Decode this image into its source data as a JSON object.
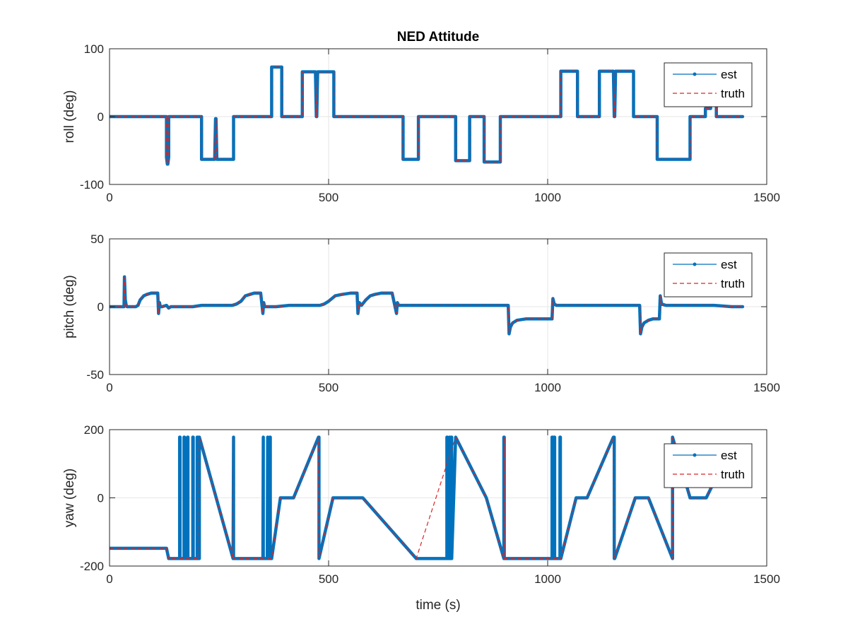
{
  "figure": {
    "title": "NED Attitude"
  },
  "colors": {
    "est": "#0072bd",
    "truth": "#d62728",
    "axis": "#262626",
    "grid": "#e6e6e6"
  },
  "chart_data": [
    {
      "type": "line",
      "title": "NED Attitude",
      "xlabel": "",
      "ylabel": "roll (deg)",
      "xlim": [
        0,
        1500
      ],
      "ylim": [
        -100,
        100
      ],
      "xticks": [
        0,
        500,
        1000,
        1500
      ],
      "yticks": [
        -100,
        0,
        100
      ],
      "grid": true,
      "legend": {
        "placement": "top-right",
        "entries": [
          "est",
          "truth"
        ]
      },
      "series": [
        {
          "name": "est",
          "x": [
            0,
            130,
            130,
            132,
            133,
            133,
            135,
            135,
            210,
            210,
            240,
            240,
            242,
            243,
            243,
            245,
            245,
            283,
            283,
            370,
            370,
            393,
            393,
            440,
            440,
            470,
            470,
            472,
            473,
            473,
            475,
            475,
            512,
            512,
            670,
            670,
            705,
            705,
            790,
            790,
            822,
            822,
            855,
            855,
            892,
            892,
            1030,
            1030,
            1068,
            1068,
            1118,
            1118,
            1150,
            1150,
            1152,
            1153,
            1153,
            1155,
            1155,
            1196,
            1196,
            1250,
            1250,
            1325,
            1325,
            1360,
            1360,
            1372,
            1372,
            1385,
            1385,
            1445
          ],
          "y": [
            0,
            0,
            -60,
            -70,
            -70,
            -70,
            -60,
            0,
            0,
            -63,
            -63,
            -63,
            -3,
            -3,
            -3,
            -63,
            -63,
            -63,
            0,
            0,
            73,
            73,
            0,
            0,
            66,
            66,
            66,
            0,
            0,
            0,
            66,
            66,
            66,
            0,
            0,
            -63,
            -63,
            0,
            0,
            -65,
            -65,
            0,
            0,
            -67,
            -67,
            0,
            0,
            67,
            67,
            0,
            0,
            67,
            67,
            67,
            0,
            0,
            0,
            67,
            67,
            67,
            0,
            0,
            -63,
            -63,
            0,
            0,
            12,
            12,
            20,
            20,
            0,
            0
          ]
        },
        {
          "name": "truth",
          "x": [
            0,
            130,
            130,
            132,
            133,
            133,
            135,
            135,
            210,
            210,
            240,
            240,
            242,
            243,
            243,
            245,
            245,
            283,
            283,
            370,
            370,
            393,
            393,
            440,
            440,
            470,
            470,
            472,
            473,
            473,
            475,
            475,
            512,
            512,
            670,
            670,
            705,
            705,
            790,
            790,
            822,
            822,
            855,
            855,
            892,
            892,
            1030,
            1030,
            1068,
            1068,
            1118,
            1118,
            1150,
            1150,
            1152,
            1153,
            1153,
            1155,
            1155,
            1196,
            1196,
            1250,
            1250,
            1325,
            1325,
            1360,
            1360,
            1372,
            1372,
            1385,
            1385,
            1445
          ],
          "y": [
            0,
            0,
            -60,
            -70,
            -70,
            -70,
            -60,
            0,
            0,
            -63,
            -63,
            -63,
            -3,
            -3,
            -3,
            -63,
            -63,
            -63,
            0,
            0,
            73,
            73,
            0,
            0,
            66,
            66,
            66,
            0,
            0,
            0,
            66,
            66,
            66,
            0,
            0,
            -63,
            -63,
            0,
            0,
            -65,
            -65,
            0,
            0,
            -67,
            -67,
            0,
            0,
            67,
            67,
            0,
            0,
            67,
            67,
            67,
            0,
            0,
            0,
            67,
            67,
            67,
            0,
            0,
            -63,
            -63,
            0,
            0,
            12,
            12,
            20,
            20,
            0,
            0
          ]
        }
      ]
    },
    {
      "type": "line",
      "title": "",
      "xlabel": "",
      "ylabel": "pitch (deg)",
      "xlim": [
        0,
        1500
      ],
      "ylim": [
        -50,
        50
      ],
      "xticks": [
        0,
        500,
        1000,
        1500
      ],
      "yticks": [
        -50,
        0,
        50
      ],
      "grid": true,
      "legend": {
        "placement": "top-right",
        "entries": [
          "est",
          "truth"
        ]
      },
      "series": [
        {
          "name": "est",
          "x": [
            0,
            33,
            34,
            36,
            38,
            40,
            45,
            55,
            60,
            65,
            70,
            78,
            85,
            95,
            110,
            112,
            114,
            116,
            120,
            130,
            135,
            140,
            150,
            170,
            190,
            210,
            240,
            270,
            280,
            290,
            300,
            310,
            320,
            330,
            345,
            350,
            352,
            354,
            356,
            360,
            380,
            410,
            440,
            470,
            480,
            490,
            500,
            515,
            530,
            550,
            565,
            567,
            570,
            575,
            585,
            595,
            605,
            620,
            645,
            655,
            657,
            660,
            665,
            680,
            720,
            760,
            800,
            840,
            880,
            910,
            912,
            915,
            920,
            930,
            950,
            970,
            990,
            1010,
            1012,
            1015,
            1020,
            1040,
            1080,
            1120,
            1160,
            1200,
            1210,
            1212,
            1215,
            1220,
            1230,
            1240,
            1250,
            1255,
            1257,
            1260,
            1270,
            1300,
            1340,
            1380,
            1420,
            1445
          ],
          "y": [
            0,
            0,
            22,
            5,
            1,
            0,
            0,
            0,
            0,
            1,
            5,
            8,
            9,
            10,
            10,
            -5,
            3,
            0,
            0,
            1,
            -1,
            0,
            0,
            0,
            0,
            1,
            1,
            1,
            1,
            2,
            4,
            8,
            9,
            10,
            10,
            -5,
            3,
            0,
            0,
            0,
            0,
            1,
            1,
            1,
            1,
            2,
            4,
            8,
            9,
            10,
            10,
            -5,
            3,
            1,
            5,
            8,
            9,
            10,
            10,
            -5,
            3,
            1,
            1,
            1,
            1,
            1,
            1,
            1,
            1,
            1,
            -20,
            -15,
            -12,
            -10,
            -9,
            -9,
            -9,
            -9,
            6,
            2,
            1,
            1,
            1,
            1,
            1,
            1,
            1,
            -20,
            -15,
            -12,
            -10,
            -9,
            -9,
            -9,
            8,
            2,
            1,
            1,
            1,
            1,
            0,
            0
          ]
        },
        {
          "name": "truth",
          "x": [
            0,
            33,
            34,
            36,
            38,
            40,
            45,
            55,
            60,
            65,
            70,
            78,
            85,
            95,
            110,
            112,
            114,
            116,
            120,
            130,
            135,
            140,
            150,
            170,
            190,
            210,
            240,
            270,
            280,
            290,
            300,
            310,
            320,
            330,
            345,
            350,
            352,
            354,
            356,
            360,
            380,
            410,
            440,
            470,
            480,
            490,
            500,
            515,
            530,
            550,
            565,
            567,
            570,
            575,
            585,
            595,
            605,
            620,
            645,
            655,
            657,
            660,
            665,
            680,
            720,
            760,
            800,
            840,
            880,
            910,
            912,
            915,
            920,
            930,
            950,
            970,
            990,
            1010,
            1012,
            1015,
            1020,
            1040,
            1080,
            1120,
            1160,
            1200,
            1210,
            1212,
            1215,
            1220,
            1230,
            1240,
            1250,
            1255,
            1257,
            1260,
            1270,
            1300,
            1340,
            1380,
            1420,
            1445
          ],
          "y": [
            0,
            0,
            22,
            5,
            1,
            0,
            0,
            0,
            0,
            1,
            5,
            8,
            9,
            10,
            10,
            -5,
            3,
            0,
            0,
            1,
            -1,
            0,
            0,
            0,
            0,
            1,
            1,
            1,
            1,
            2,
            4,
            8,
            9,
            10,
            10,
            -5,
            3,
            0,
            0,
            0,
            0,
            1,
            1,
            1,
            1,
            2,
            4,
            8,
            9,
            10,
            10,
            -5,
            3,
            1,
            5,
            8,
            9,
            10,
            10,
            -5,
            3,
            1,
            1,
            1,
            1,
            1,
            1,
            1,
            1,
            1,
            -20,
            -15,
            -12,
            -10,
            -9,
            -9,
            -9,
            -9,
            6,
            2,
            1,
            1,
            1,
            1,
            1,
            1,
            1,
            -20,
            -15,
            -12,
            -10,
            -9,
            -9,
            -9,
            8,
            2,
            1,
            1,
            1,
            1,
            0,
            0
          ]
        }
      ]
    },
    {
      "type": "line",
      "title": "",
      "xlabel": "time (s)",
      "ylabel": "yaw (deg)",
      "xlim": [
        0,
        1500
      ],
      "ylim": [
        -200,
        200
      ],
      "xticks": [
        0,
        500,
        1000,
        1500
      ],
      "yticks": [
        -200,
        0,
        200
      ],
      "grid": true,
      "legend": {
        "placement": "top-right",
        "entries": [
          "est",
          "truth"
        ]
      },
      "series": [
        {
          "name": "est",
          "x": [
            0,
            130,
            135,
            160,
            160,
            161,
            161,
            170,
            170,
            171,
            171,
            178,
            178,
            179,
            179,
            190,
            190,
            191,
            191,
            200,
            200,
            201,
            201,
            205,
            205,
            282,
            282,
            283,
            283,
            350,
            350,
            351,
            351,
            360,
            360,
            361,
            361,
            366,
            366,
            367,
            367,
            370,
            390,
            420,
            477,
            478,
            478,
            510,
            570,
            578,
            700,
            770,
            770,
            771,
            771,
            776,
            776,
            777,
            777,
            780,
            780,
            781,
            781,
            790,
            860,
            900,
            900,
            901,
            901,
            1000,
            1010,
            1010,
            1011,
            1011,
            1015,
            1015,
            1016,
            1016,
            1028,
            1028,
            1029,
            1029,
            1030,
            1065,
            1090,
            1150,
            1152,
            1152,
            1153,
            1153,
            1200,
            1230,
            1285,
            1285,
            1325,
            1340,
            1362,
            1385
          ],
          "y": [
            -148,
            -148,
            -178,
            -178,
            178,
            178,
            -178,
            -178,
            178,
            178,
            -178,
            -178,
            178,
            178,
            -178,
            -178,
            178,
            178,
            -178,
            -178,
            178,
            178,
            -178,
            -178,
            178,
            -178,
            -178,
            178,
            -178,
            -178,
            -178,
            178,
            -178,
            -178,
            -178,
            178,
            -178,
            -178,
            178,
            178,
            -178,
            -178,
            0,
            0,
            178,
            178,
            -178,
            0,
            0,
            0,
            -178,
            -178,
            178,
            178,
            -178,
            -178,
            178,
            178,
            -178,
            -178,
            178,
            178,
            -178,
            178,
            0,
            -178,
            178,
            178,
            -178,
            -178,
            -178,
            178,
            178,
            -178,
            -178,
            178,
            178,
            -178,
            -178,
            178,
            178,
            -178,
            -178,
            0,
            0,
            178,
            178,
            -178,
            -178,
            -178,
            0,
            0,
            -178,
            178,
            0,
            0,
            0,
            60
          ]
        },
        {
          "name": "truth",
          "x": [
            0,
            130,
            135,
            205,
            205,
            282,
            282,
            283,
            283,
            370,
            390,
            420,
            477,
            477,
            478,
            478,
            510,
            570,
            578,
            700,
            790,
            860,
            900,
            900,
            901,
            901,
            1000,
            1030,
            1065,
            1090,
            1150,
            1150,
            1151,
            1151,
            1200,
            1230,
            1285,
            1285,
            1325,
            1340,
            1362,
            1385
          ],
          "y": [
            -148,
            -148,
            -178,
            -178,
            178,
            -178,
            -178,
            178,
            -178,
            -178,
            0,
            0,
            178,
            178,
            -178,
            -178,
            0,
            0,
            0,
            -178,
            178,
            0,
            -178,
            -178,
            178,
            -178,
            -178,
            -178,
            0,
            0,
            178,
            178,
            -178,
            -178,
            0,
            0,
            -178,
            178,
            0,
            0,
            0,
            60
          ]
        }
      ]
    }
  ]
}
